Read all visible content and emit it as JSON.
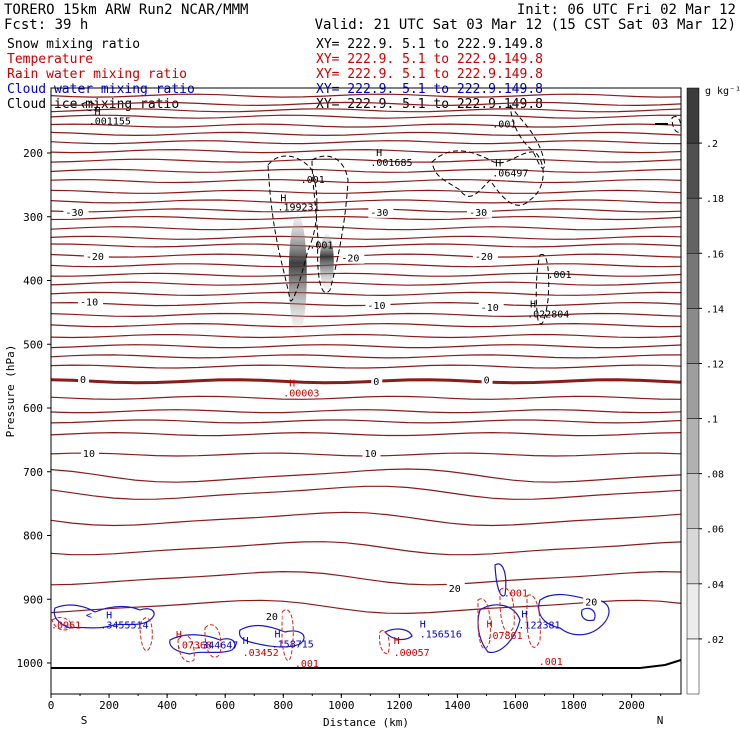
{
  "header": {
    "title_left": "TORERO  15km ARW   Run2    NCAR/MMM",
    "init": "Init: 06 UTC Fri 02 Mar 12",
    "fcst": "Fcst:   39 h",
    "valid": "Valid: 21 UTC Sat 03 Mar 12 (15 CST Sat 03 Mar 12)"
  },
  "legend": [
    {
      "name": "Snow mixing ratio",
      "xy": "XY= 222.9.  5.1 to 222.9.149.8",
      "color": "#000000"
    },
    {
      "name": "Temperature",
      "xy": "XY= 222.9.  5.1 to 222.9.149.8",
      "color": "#cc0000"
    },
    {
      "name": "Rain water mixing ratio",
      "xy": "XY= 222.9.  5.1 to 222.9.149.8",
      "color": "#cc0000"
    },
    {
      "name": "Cloud water mixing ratio",
      "xy": "XY= 222.9.  5.1 to 222.9.149.8",
      "color": "#0000cc"
    },
    {
      "name": "Cloud ice mixing ratio",
      "xy": "XY= 222.9.  5.1 to 222.9.149.8",
      "color": "#000000"
    }
  ],
  "chart_data": {
    "type": "contour",
    "xlabel": "Distance (km)",
    "ylabel": "Pressure (hPa)",
    "xlim": [
      0,
      2170
    ],
    "ylim": [
      1050,
      100
    ],
    "x_ticks": [
      0,
      200,
      400,
      600,
      800,
      1000,
      1200,
      1400,
      1600,
      1800,
      2000
    ],
    "y_ticks": [
      200,
      300,
      400,
      500,
      600,
      700,
      800,
      900,
      1000
    ],
    "x_end_labels": [
      "S",
      "N"
    ],
    "colorbar": {
      "unit": "g kg⁻¹",
      "ticks": [
        ".02",
        ".04",
        ".06",
        ".08",
        ".1",
        ".12",
        ".14",
        ".16",
        ".18",
        ".2"
      ]
    },
    "temperature_contour_labels": [
      {
        "text": "-30",
        "x": 50,
        "p": 297
      },
      {
        "text": "-30",
        "x": 1100,
        "p": 297
      },
      {
        "text": "-30",
        "x": 1440,
        "p": 297
      },
      {
        "text": "-20",
        "x": 120,
        "p": 366
      },
      {
        "text": "-20",
        "x": 1000,
        "p": 369
      },
      {
        "text": "-20",
        "x": 1460,
        "p": 366
      },
      {
        "text": "-10",
        "x": 100,
        "p": 438
      },
      {
        "text": "-10",
        "x": 1090,
        "p": 443
      },
      {
        "text": "-10",
        "x": 1480,
        "p": 446
      },
      {
        "text": "0",
        "x": 100,
        "p": 559
      },
      {
        "text": "0",
        "x": 1110,
        "p": 562
      },
      {
        "text": "0",
        "x": 1490,
        "p": 560
      },
      {
        "text": "10",
        "x": 110,
        "p": 675
      },
      {
        "text": "10",
        "x": 1080,
        "p": 675
      },
      {
        "text": "20",
        "x": 740,
        "p": 931
      },
      {
        "text": "20",
        "x": 1370,
        "p": 887
      },
      {
        "text": "20",
        "x": 1840,
        "p": 908
      }
    ],
    "annotations": [
      {
        "text": "H",
        "x": 150,
        "p": 140,
        "color": "#000000"
      },
      {
        "text": ".001155",
        "x": 130,
        "p": 155,
        "color": "#000000"
      },
      {
        "text": ".001",
        "x": 1520,
        "p": 160,
        "color": "#000000"
      },
      {
        "text": "H",
        "x": 1120,
        "p": 205,
        "color": "#000000"
      },
      {
        "text": ".001685",
        "x": 1100,
        "p": 220,
        "color": "#000000"
      },
      {
        "text": "H",
        "x": 1530,
        "p": 221,
        "color": "#000000"
      },
      {
        "text": ".06497",
        "x": 1520,
        "p": 237,
        "color": "#000000"
      },
      {
        "text": ".001",
        "x": 860,
        "p": 247,
        "color": "#000000"
      },
      {
        "text": "H",
        "x": 790,
        "p": 276,
        "color": "#000000"
      },
      {
        "text": ".199231",
        "x": 780,
        "p": 290,
        "color": "#000000"
      },
      {
        "text": ".001",
        "x": 890,
        "p": 350,
        "color": "#000000"
      },
      {
        "text": ".001",
        "x": 1710,
        "p": 396,
        "color": "#000000"
      },
      {
        "text": "H",
        "x": 1650,
        "p": 442,
        "color": "#000000"
      },
      {
        "text": ".022804",
        "x": 1640,
        "p": 458,
        "color": "#000000"
      },
      {
        "text": "H",
        "x": 820,
        "p": 566,
        "color": "#cc0000"
      },
      {
        "text": ".00003",
        "x": 800,
        "p": 582,
        "color": "#cc0000"
      },
      {
        "text": "H",
        "x": 190,
        "p": 930,
        "color": "#0000cc"
      },
      {
        "text": ".3455514",
        "x": 170,
        "p": 946,
        "color": "#0000cc"
      },
      {
        "text": ".0961",
        "x": 0,
        "p": 946,
        "color": "#cc0000"
      },
      {
        "text": "H",
        "x": 430,
        "p": 961,
        "color": "#cc0000"
      },
      {
        "text": ".07368",
        "x": 430,
        "p": 977,
        "color": "#cc0000"
      },
      {
        "text": ".344647",
        "x": 500,
        "p": 977,
        "color": "#0000cc"
      },
      {
        "text": "H",
        "x": 660,
        "p": 970,
        "color": "#0000cc"
      },
      {
        "text": ".03452",
        "x": 660,
        "p": 989,
        "color": "#cc0000"
      },
      {
        "text": "H",
        "x": 770,
        "p": 960,
        "color": "#0000cc"
      },
      {
        "text": ".158715",
        "x": 760,
        "p": 976,
        "color": "#0000cc"
      },
      {
        "text": ".001",
        "x": 840,
        "p": 1006,
        "color": "#cc0000"
      },
      {
        "text": "H",
        "x": 1180,
        "p": 970,
        "color": "#cc0000"
      },
      {
        "text": ".00057",
        "x": 1180,
        "p": 989,
        "color": "#cc0000"
      },
      {
        "text": "H",
        "x": 1270,
        "p": 944,
        "color": "#0000cc"
      },
      {
        "text": ".156516",
        "x": 1270,
        "p": 960,
        "color": "#0000cc"
      },
      {
        "text": "H",
        "x": 1500,
        "p": 944,
        "color": "#cc0000"
      },
      {
        "text": ".07861",
        "x": 1500,
        "p": 962,
        "color": "#cc0000"
      },
      {
        "text": "H",
        "x": 1620,
        "p": 929,
        "color": "#0000cc"
      },
      {
        "text": ".122381",
        "x": 1610,
        "p": 946,
        "color": "#0000cc"
      },
      {
        "text": ".001",
        "x": 1560,
        "p": 896,
        "color": "#cc0000"
      },
      {
        "text": ".001",
        "x": 1680,
        "p": 1003,
        "color": "#cc0000"
      },
      {
        "text": "<",
        "x": 120,
        "p": 930,
        "color": "#0000cc"
      }
    ]
  }
}
